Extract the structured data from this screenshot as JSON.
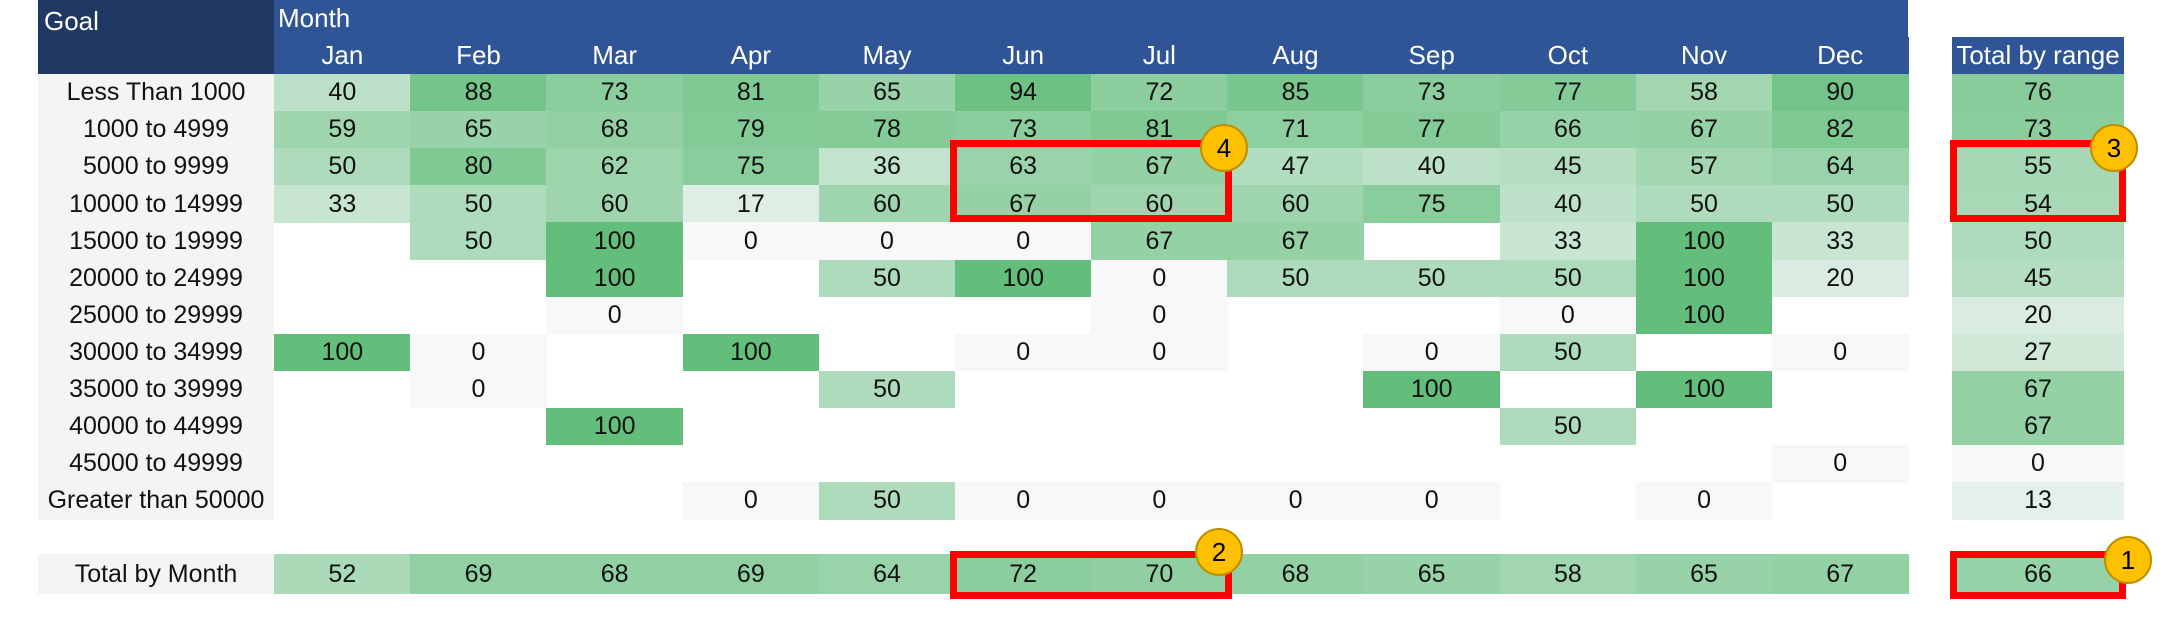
{
  "headers": {
    "goal": "Goal",
    "month": "Month",
    "total_by_range": "Total by range"
  },
  "months": [
    "Jan",
    "Feb",
    "Mar",
    "Apr",
    "May",
    "Jun",
    "Jul",
    "Aug",
    "Sep",
    "Oct",
    "Nov",
    "Dec"
  ],
  "rows": [
    {
      "label": "Less Than 1000",
      "values": [
        40,
        88,
        73,
        81,
        65,
        94,
        72,
        85,
        73,
        77,
        58,
        90
      ],
      "total": 76
    },
    {
      "label": "1000 to 4999",
      "values": [
        59,
        65,
        68,
        79,
        78,
        73,
        81,
        71,
        77,
        66,
        67,
        82
      ],
      "total": 73
    },
    {
      "label": "5000 to 9999",
      "values": [
        50,
        80,
        62,
        75,
        36,
        63,
        67,
        47,
        40,
        45,
        57,
        64
      ],
      "total": 55
    },
    {
      "label": "10000 to 14999",
      "values": [
        33,
        50,
        60,
        17,
        60,
        67,
        60,
        60,
        75,
        40,
        50,
        50
      ],
      "total": 54
    },
    {
      "label": "15000 to 19999",
      "values": [
        null,
        50,
        100,
        0,
        0,
        0,
        67,
        67,
        null,
        33,
        100,
        33
      ],
      "total": 50
    },
    {
      "label": "20000 to 24999",
      "values": [
        null,
        null,
        100,
        null,
        50,
        100,
        0,
        50,
        50,
        50,
        100,
        20
      ],
      "total": 45
    },
    {
      "label": "25000 to 29999",
      "values": [
        null,
        null,
        0,
        null,
        null,
        null,
        0,
        null,
        null,
        0,
        100,
        null
      ],
      "total": 20
    },
    {
      "label": "30000 to 34999",
      "values": [
        100,
        0,
        null,
        100,
        null,
        0,
        0,
        null,
        0,
        50,
        null,
        0
      ],
      "total": 27
    },
    {
      "label": "35000 to 39999",
      "values": [
        null,
        0,
        null,
        null,
        50,
        null,
        null,
        null,
        100,
        null,
        100,
        null
      ],
      "total": 67
    },
    {
      "label": "40000 to 44999",
      "values": [
        null,
        null,
        100,
        null,
        null,
        null,
        null,
        null,
        null,
        50,
        null,
        null
      ],
      "total": 67
    },
    {
      "label": "45000 to 49999",
      "values": [
        null,
        null,
        null,
        null,
        null,
        null,
        null,
        null,
        null,
        null,
        null,
        0
      ],
      "total": 0
    },
    {
      "label": "Greater than 50000",
      "values": [
        null,
        null,
        null,
        0,
        50,
        0,
        0,
        0,
        0,
        null,
        0,
        null
      ],
      "total": 13
    }
  ],
  "total_row": {
    "label": "Total by Month",
    "values": [
      52,
      69,
      68,
      69,
      64,
      72,
      70,
      68,
      65,
      58,
      65,
      67
    ],
    "total": 66
  },
  "callouts": [
    {
      "number": "1",
      "target": "grand-total"
    },
    {
      "number": "2",
      "target": "jun-jul-monthly-totals"
    },
    {
      "number": "3",
      "target": "range-totals-5000-14999"
    },
    {
      "number": "4",
      "target": "jun-jul-5000-14999"
    }
  ],
  "colors": {
    "header_blue": "#2f5597",
    "header_dark": "#1f3864",
    "scale_low": "#f8f8fb",
    "scale_high": "#63be7b",
    "highlight_red": "#ff0000",
    "callout_gold": "#ffc000"
  }
}
